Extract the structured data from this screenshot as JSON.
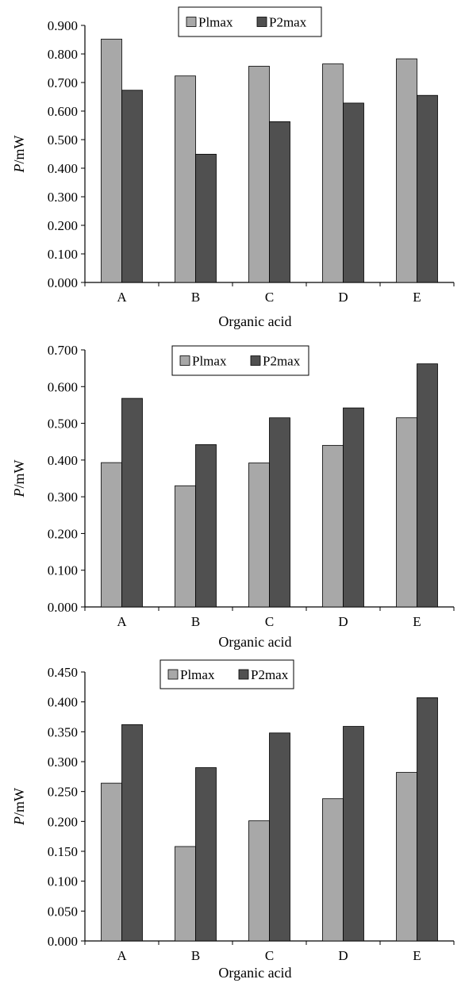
{
  "colors": {
    "p1": "#a8a8a8",
    "p2": "#505050",
    "axis": "#000000"
  },
  "chart_data": [
    {
      "type": "bar",
      "categories": [
        "A",
        "B",
        "C",
        "D",
        "E"
      ],
      "series": [
        {
          "name": "Plmax",
          "values": [
            0.852,
            0.723,
            0.757,
            0.765,
            0.783
          ]
        },
        {
          "name": "P2max",
          "values": [
            0.673,
            0.449,
            0.563,
            0.628,
            0.655
          ]
        }
      ],
      "yticks": [
        "0.000",
        "0.100",
        "0.200",
        "0.300",
        "0.400",
        "0.500",
        "0.600",
        "0.700",
        "0.800",
        "0.900"
      ],
      "ylim": [
        0,
        0.9
      ],
      "xlabel": "Organic acid",
      "ylabel_var": "P",
      "ylabel_unit": "/mW",
      "legend": "top-center",
      "grid": false
    },
    {
      "type": "bar",
      "categories": [
        "A",
        "B",
        "C",
        "D",
        "E"
      ],
      "series": [
        {
          "name": "Plmax",
          "values": [
            0.393,
            0.33,
            0.392,
            0.44,
            0.515
          ]
        },
        {
          "name": "P2max",
          "values": [
            0.568,
            0.442,
            0.515,
            0.542,
            0.662
          ]
        }
      ],
      "yticks": [
        "0.000",
        "0.100",
        "0.200",
        "0.300",
        "0.400",
        "0.500",
        "0.600",
        "0.700"
      ],
      "ylim": [
        0,
        0.7
      ],
      "xlabel": "Organic acid",
      "ylabel_var": "P",
      "ylabel_unit": "/mW",
      "legend": "top-center",
      "grid": false
    },
    {
      "type": "bar",
      "categories": [
        "A",
        "B",
        "C",
        "D",
        "E"
      ],
      "series": [
        {
          "name": "Plmax",
          "values": [
            0.264,
            0.158,
            0.201,
            0.238,
            0.282
          ]
        },
        {
          "name": "P2max",
          "values": [
            0.362,
            0.29,
            0.348,
            0.359,
            0.407
          ]
        }
      ],
      "yticks": [
        "0.000",
        "0.050",
        "0.100",
        "0.150",
        "0.200",
        "0.250",
        "0.300",
        "0.350",
        "0.400",
        "0.450"
      ],
      "ylim": [
        0,
        0.45
      ],
      "xlabel": "Organic acid",
      "ylabel_var": "P",
      "ylabel_unit": "/mW",
      "legend": "top-center",
      "grid": false
    }
  ]
}
